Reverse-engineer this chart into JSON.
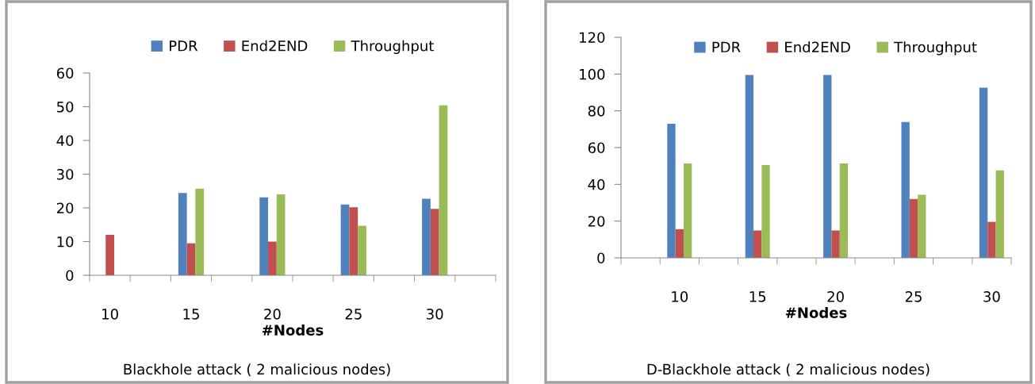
{
  "chart_data": [
    {
      "type": "bar",
      "title": "Blackhole attack ( 2 malicious nodes)",
      "xlabel": "#Nodes",
      "categories": [
        "10",
        null,
        "15",
        null,
        "20",
        null,
        "25",
        null,
        "30",
        null
      ],
      "series": [
        {
          "name": "PDR",
          "color": "#4f81bd",
          "values": [
            null,
            null,
            24.4,
            null,
            23.1,
            null,
            21,
            null,
            22.7,
            null
          ]
        },
        {
          "name": "End2END",
          "color": "#c0504d",
          "values": [
            12,
            null,
            9.5,
            null,
            10,
            null,
            20.2,
            null,
            19.7,
            null
          ]
        },
        {
          "name": "Throughput",
          "color": "#9bbb59",
          "values": [
            null,
            null,
            25.7,
            null,
            24,
            null,
            14.7,
            null,
            50.4,
            null
          ]
        }
      ],
      "ylim": [
        0,
        60
      ],
      "yticks": [
        0,
        10,
        20,
        30,
        40,
        50,
        60
      ],
      "grid": false,
      "legend": "top"
    },
    {
      "type": "bar",
      "title": "D-Blackhole attack ( 2 malicious nodes)",
      "xlabel": "#Nodes",
      "categories": [
        null,
        "10",
        null,
        "15",
        null,
        "20",
        null,
        "25",
        null,
        "30"
      ],
      "series": [
        {
          "name": "PDR",
          "color": "#4f81bd",
          "values": [
            null,
            73,
            null,
            99.5,
            null,
            99.5,
            null,
            73.9,
            null,
            92.6
          ]
        },
        {
          "name": "End2END",
          "color": "#c0504d",
          "values": [
            null,
            15.6,
            null,
            14.9,
            null,
            14.9,
            null,
            32,
            null,
            19.6
          ]
        },
        {
          "name": "Throughput",
          "color": "#9bbb59",
          "values": [
            null,
            51.4,
            null,
            50.5,
            null,
            51.4,
            null,
            34.3,
            null,
            47.6
          ]
        }
      ],
      "ylim": [
        0,
        120
      ],
      "yticks": [
        0,
        20,
        40,
        60,
        80,
        100,
        120
      ],
      "grid": false,
      "legend": "top"
    }
  ]
}
